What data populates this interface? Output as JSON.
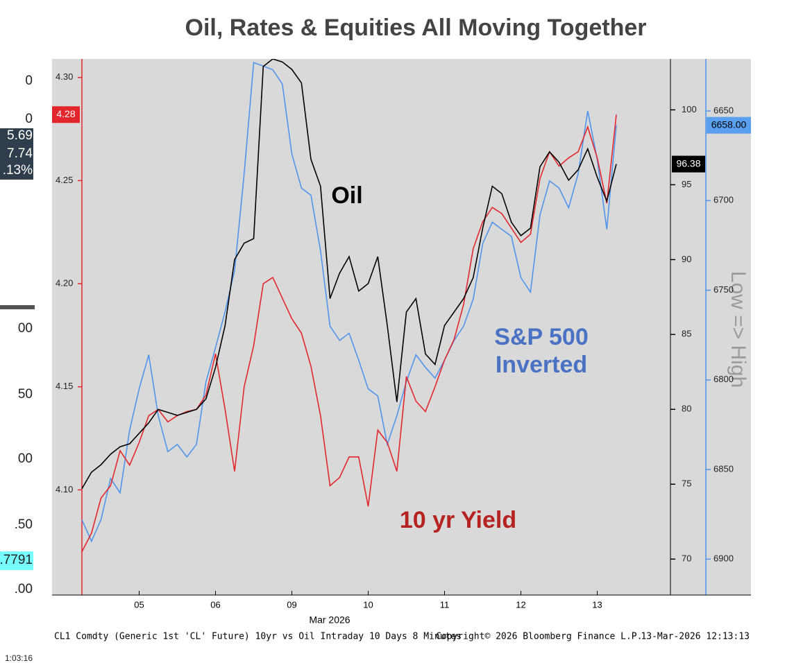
{
  "chart_data": {
    "type": "line",
    "title": "Oil, Rates & Equities All Moving Together",
    "x_label": "Mar 2026",
    "categories": [
      null,
      null,
      null,
      null,
      null,
      null,
      "05",
      null,
      null,
      null,
      null,
      null,
      null,
      null,
      "06",
      null,
      null,
      null,
      null,
      null,
      null,
      null,
      "09",
      null,
      null,
      null,
      null,
      null,
      null,
      null,
      "10",
      null,
      null,
      null,
      null,
      null,
      null,
      null,
      "11",
      null,
      null,
      null,
      null,
      null,
      null,
      null,
      "12",
      null,
      null,
      null,
      null,
      null,
      null,
      null,
      "13",
      null,
      null
    ],
    "series": [
      {
        "name": "Oil",
        "color": "#000000",
        "axis": "y2",
        "last_label": "96.38",
        "values": [
          74.7,
          75.8,
          76.3,
          77.0,
          77.5,
          77.7,
          78.4,
          79.1,
          80.0,
          79.8,
          79.6,
          79.8,
          80.0,
          80.7,
          82.8,
          85.6,
          90.0,
          91.1,
          91.4,
          102.9,
          103.4,
          103.2,
          102.7,
          101.8,
          96.7,
          94.9,
          87.4,
          89.1,
          90.2,
          87.9,
          88.4,
          90.2,
          85.6,
          80.5,
          86.5,
          87.4,
          83.7,
          83.0,
          85.6,
          86.5,
          87.4,
          88.8,
          92.1,
          94.9,
          94.4,
          92.5,
          91.6,
          92.1,
          96.2,
          97.2,
          96.5,
          95.3,
          96.0,
          97.4,
          95.5,
          93.9,
          96.38
        ]
      },
      {
        "name": "10 yr Yield",
        "color": "#e3262b",
        "axis": "y",
        "last_label": "4.28",
        "values": [
          4.07,
          4.079,
          4.096,
          4.102,
          4.119,
          4.112,
          4.123,
          4.136,
          4.139,
          4.133,
          4.136,
          4.138,
          4.139,
          4.146,
          4.166,
          4.139,
          4.109,
          4.15,
          4.17,
          4.2,
          4.203,
          4.193,
          4.183,
          4.176,
          4.16,
          4.136,
          4.102,
          4.106,
          4.116,
          4.116,
          4.092,
          4.129,
          4.123,
          4.109,
          4.155,
          4.143,
          4.138,
          4.15,
          4.163,
          4.173,
          4.19,
          4.217,
          4.23,
          4.237,
          4.234,
          4.227,
          4.22,
          4.224,
          4.251,
          4.264,
          4.257,
          4.261,
          4.264,
          4.276,
          4.261,
          4.239,
          4.282
        ]
      },
      {
        "name": "S&P 500 Inverted",
        "color": "#4f94ec",
        "axis": "y3",
        "last_label": "6658.00",
        "values": [
          6878,
          6890,
          6878,
          6855,
          6863,
          6828,
          6805,
          6786,
          6820,
          6840,
          6836,
          6843,
          6836,
          6801,
          6782,
          6762,
          6739,
          6685,
          6623,
          6625,
          6627,
          6635,
          6674,
          6693,
          6697,
          6728,
          6770,
          6778,
          6774,
          6789,
          6805,
          6809,
          6836,
          6820,
          6801,
          6786,
          6793,
          6799,
          6789,
          6778,
          6770,
          6755,
          6724,
          6712,
          6716,
          6720,
          6743,
          6751,
          6708,
          6689,
          6693,
          6704,
          6685,
          6650,
          6677,
          6716,
          6658
        ]
      }
    ],
    "ylim": [
      4.049,
      4.309
    ],
    "yticks": [
      {
        "value": 4.1,
        "label": "4.10"
      },
      4.15,
      {
        "value": 4.2,
        "label": "4.20"
      },
      4.25,
      {
        "value": 4.3,
        "label": "4.30"
      }
    ],
    "y2lim": [
      67.6,
      103.4
    ],
    "y2ticks": [
      70,
      75,
      80,
      85,
      90,
      95,
      100
    ],
    "y3lim": [
      6920,
      6621
    ],
    "y3ticks": [
      6650,
      6700,
      6750,
      6800,
      6850,
      6900
    ],
    "y3_label": "Low => High",
    "footer_left": "CL1 Comdty (Generic 1st 'CL' Future) 10yr vs Oil Intraday 10 Days 8 Minutes",
    "footer_mid": "Copyright© 2026 Bloomberg Finance L.P.",
    "footer_right": "13-Mar-2026 12:13:13",
    "left_strip": [
      "0",
      "0",
      "5.69",
      "7.74",
      ".13%",
      "00",
      "50",
      "00",
      ".50",
      ".7791",
      ".00",
      "1:03:16"
    ]
  }
}
